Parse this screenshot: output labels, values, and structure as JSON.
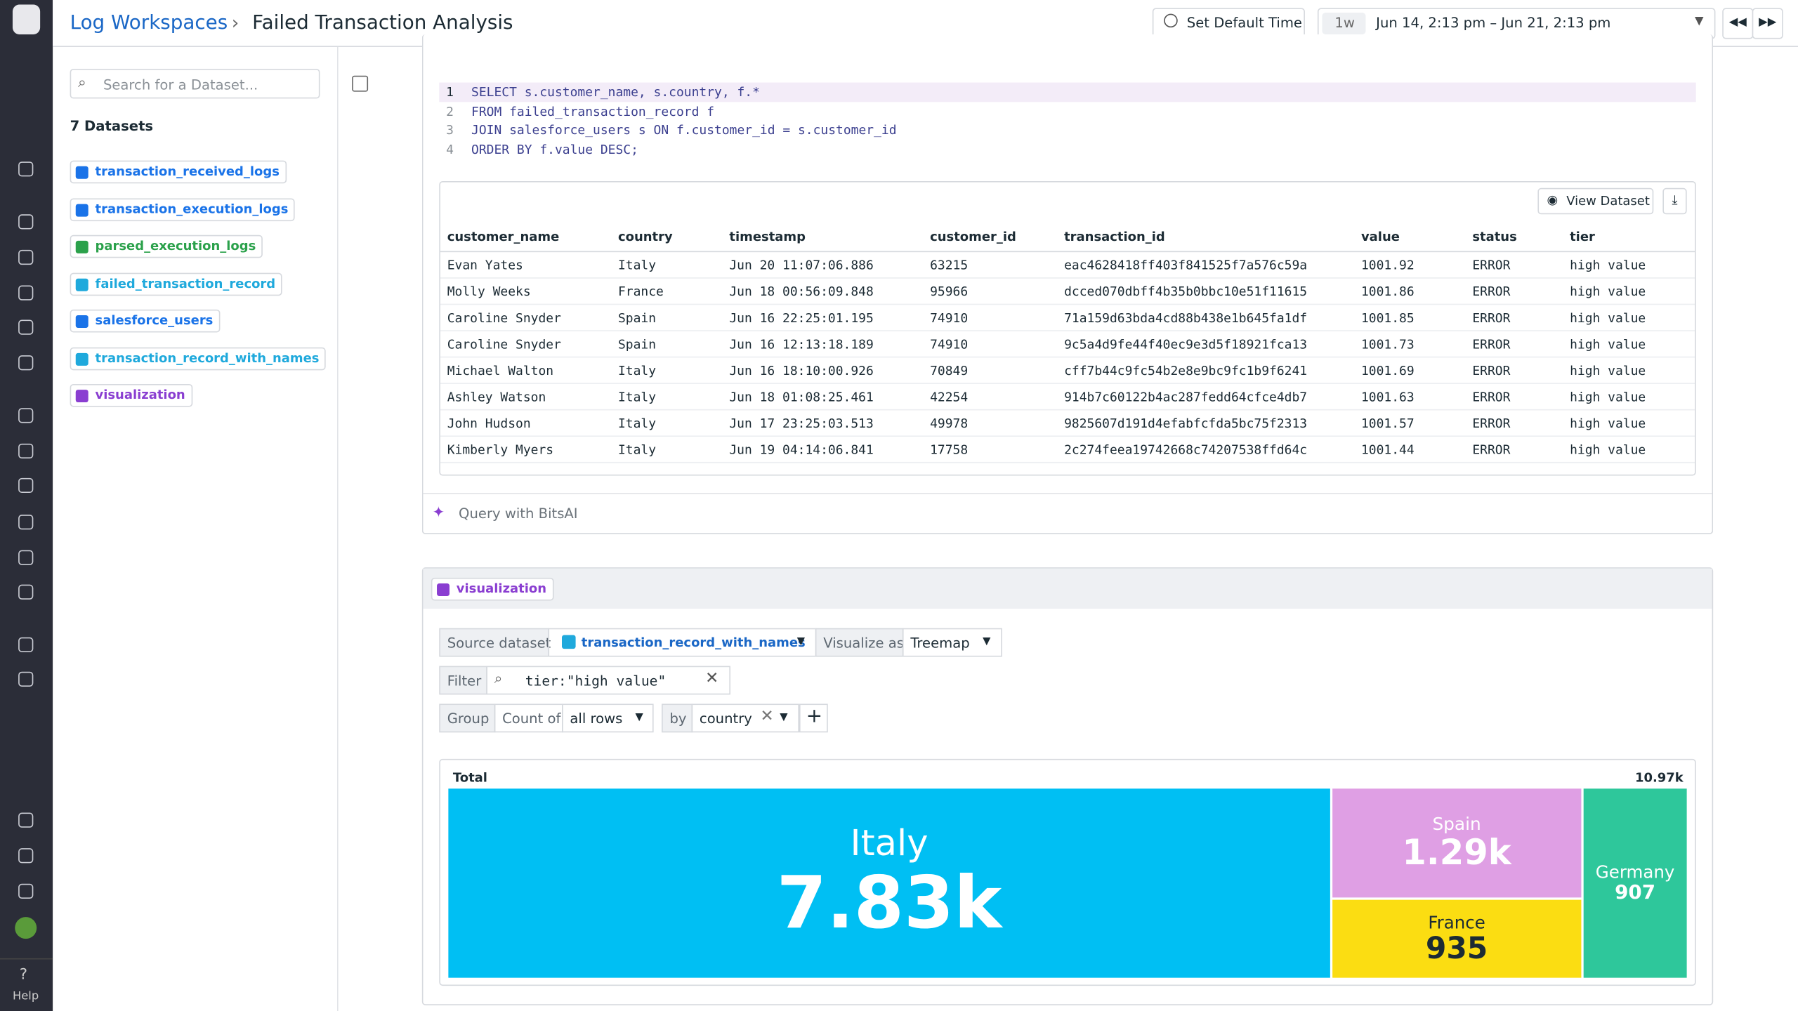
{
  "header": {
    "breadcrumb": "Log Workspaces",
    "title": "Failed Transaction Analysis",
    "set_default_time": "Set Default Time",
    "time_preset": "1w",
    "time_range": "Jun 14, 2:13 pm – Jun 21, 2:13 pm"
  },
  "nav": {
    "help": "Help"
  },
  "datasets_panel": {
    "search_placeholder": "Search for a Dataset...",
    "count_label": "7 Datasets",
    "datasets": [
      {
        "name": "transaction_received_logs",
        "color": "#1a73e8"
      },
      {
        "name": "transaction_execution_logs",
        "color": "#1a73e8"
      },
      {
        "name": "parsed_execution_logs",
        "color": "#2ba14b"
      },
      {
        "name": "failed_transaction_record",
        "color": "#1fa9dc"
      },
      {
        "name": "salesforce_users",
        "color": "#1a73e8"
      },
      {
        "name": "transaction_record_with_names",
        "color": "#1fa9dc"
      },
      {
        "name": "visualization",
        "color": "#8a3ed1"
      }
    ]
  },
  "query_cell": {
    "line_numbers": [
      "1",
      "2",
      "3",
      "4"
    ],
    "sql_lines": [
      "SELECT s.customer_name, s.country, f.*",
      "FROM failed_transaction_record f",
      "JOIN salesforce_users s ON f.customer_id = s.customer_id",
      "ORDER BY f.value DESC;"
    ],
    "view_dataset": "View Dataset",
    "table": {
      "columns": [
        "customer_name",
        "country",
        "timestamp",
        "customer_id",
        "transaction_id",
        "value",
        "status",
        "tier"
      ],
      "rows": [
        [
          "Evan Yates",
          "Italy",
          "Jun 20 11:07:06.886",
          "63215",
          "eac4628418ff403f841525f7a576c59a",
          "1001.92",
          "ERROR",
          "high value"
        ],
        [
          "Molly Weeks",
          "France",
          "Jun 18 00:56:09.848",
          "95966",
          "dcced070dbff4b35b0bbc10e51f11615",
          "1001.86",
          "ERROR",
          "high value"
        ],
        [
          "Caroline Snyder",
          "Spain",
          "Jun 16 22:25:01.195",
          "74910",
          "71a159d63bda4cd88b438e1b645fa1df",
          "1001.85",
          "ERROR",
          "high value"
        ],
        [
          "Caroline Snyder",
          "Spain",
          "Jun 16 12:13:18.189",
          "74910",
          "9c5a4d9fe44f40ec9e3d5f18921fca13",
          "1001.73",
          "ERROR",
          "high value"
        ],
        [
          "Michael Walton",
          "Italy",
          "Jun 16 18:10:00.926",
          "70849",
          "cff7b44c9fc54b2e8e9bc9fc1b9f6241",
          "1001.69",
          "ERROR",
          "high value"
        ],
        [
          "Ashley Watson",
          "Italy",
          "Jun 18 01:08:25.461",
          "42254",
          "914b7c60122b4ac287fedd64cfce4db7",
          "1001.63",
          "ERROR",
          "high value"
        ],
        [
          "John Hudson",
          "Italy",
          "Jun 17 23:25:03.513",
          "49978",
          "9825607d191d4efabfcfda5bc75f2313",
          "1001.57",
          "ERROR",
          "high value"
        ],
        [
          "Kimberly Myers",
          "Italy",
          "Jun 19 04:14:06.841",
          "17758",
          "2c274feea19742668c74207538ffd64c",
          "1001.44",
          "ERROR",
          "high value"
        ]
      ]
    },
    "bits_ai": "Query with BitsAI"
  },
  "viz_cell": {
    "name": "visualization",
    "source_label": "Source dataset",
    "source": "transaction_record_with_names",
    "visualize_as_label": "Visualize as",
    "visualize_as": "Treemap",
    "filter_label": "Filter",
    "filter_query": "tier:\"high value\"",
    "group_label": "Group",
    "count_of": "Count of",
    "count_target": "all rows",
    "by": "by",
    "group_by": "country"
  },
  "treemap": {
    "total_label": "Total",
    "total": 10970,
    "total_value_label": "10.97k",
    "items": [
      {
        "name": "Italy",
        "value": 7830,
        "value_label": "7.83k",
        "color": "#00bff3"
      },
      {
        "name": "Spain",
        "value": 1290,
        "value_label": "1.29k",
        "color": "#df9fe4"
      },
      {
        "name": "France",
        "value": 935,
        "value_label": "935",
        "color": "#fbdd12"
      },
      {
        "name": "Germany",
        "value": 907,
        "value_label": "907",
        "color": "#2ec79b"
      }
    ]
  }
}
